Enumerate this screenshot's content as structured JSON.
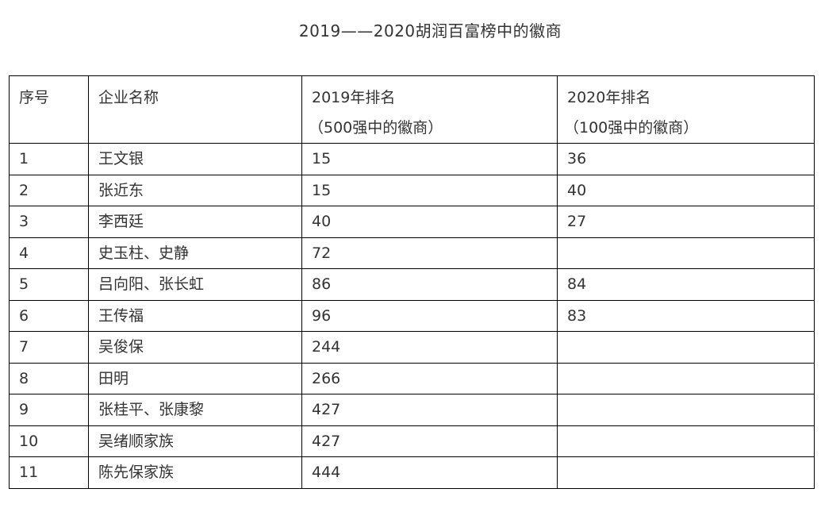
{
  "title": "2019——2020胡润百富榜中的徽商",
  "table": {
    "headers": {
      "index": "序号",
      "company": "企业名称",
      "rank2019": "2019年排名",
      "rank2019_note": "（500强中的徽商）",
      "rank2020": "2020年排名",
      "rank2020_note": "（100强中的徽商）"
    },
    "rows": [
      {
        "index": "1",
        "name": "王文银",
        "rank2019": "15",
        "rank2020": "36"
      },
      {
        "index": "2",
        "name": "张近东",
        "rank2019": "15",
        "rank2020": "40"
      },
      {
        "index": "3",
        "name": "李西廷",
        "rank2019": "40",
        "rank2020": "27"
      },
      {
        "index": "4",
        "name": "史玉柱、史静",
        "rank2019": "72",
        "rank2020": ""
      },
      {
        "index": "5",
        "name": "吕向阳、张长虹",
        "rank2019": "86",
        "rank2020": "84"
      },
      {
        "index": "6",
        "name": "王传福",
        "rank2019": "96",
        "rank2020": "83"
      },
      {
        "index": "7",
        "name": "吴俊保",
        "rank2019": "244",
        "rank2020": ""
      },
      {
        "index": "8",
        "name": "田明",
        "rank2019": "266",
        "rank2020": ""
      },
      {
        "index": "9",
        "name": "张桂平、张康黎",
        "rank2019": "427",
        "rank2020": ""
      },
      {
        "index": "10",
        "name": "吴绪顺家族",
        "rank2019": "427",
        "rank2020": ""
      },
      {
        "index": "11",
        "name": "陈先保家族",
        "rank2019": "444",
        "rank2020": ""
      }
    ]
  }
}
